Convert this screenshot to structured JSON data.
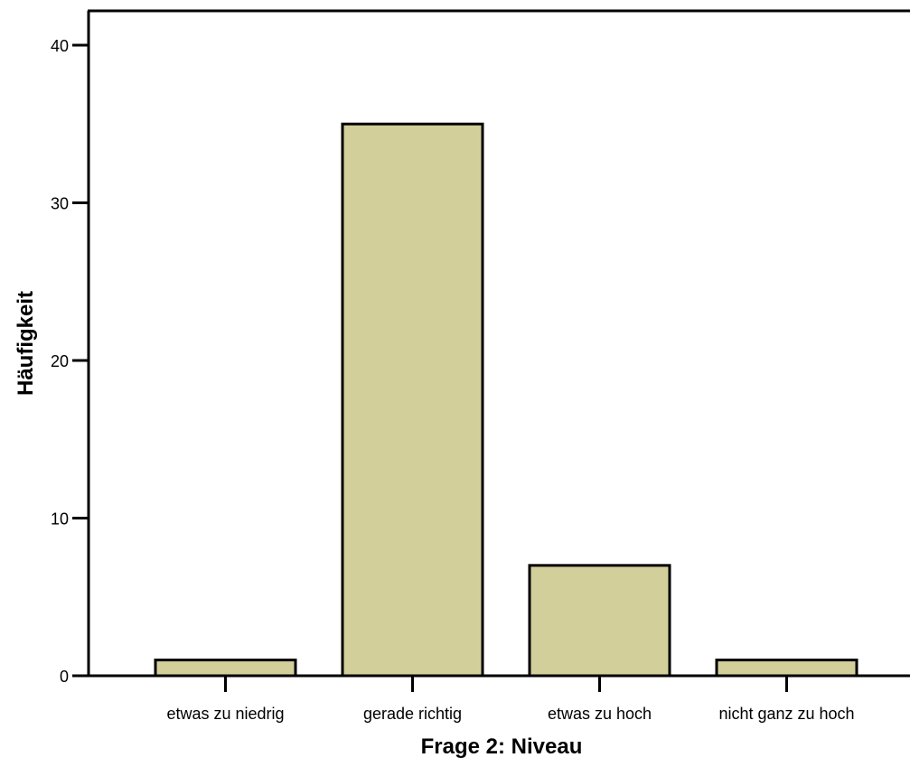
{
  "chart_data": {
    "type": "bar",
    "title": "",
    "xlabel": "Frage 2: Niveau",
    "ylabel": "Häufigkeit",
    "categories": [
      "etwas zu niedrig",
      "gerade richtig",
      "etwas zu hoch",
      "nicht ganz zu hoch"
    ],
    "values": [
      1,
      35,
      7,
      1
    ],
    "ylim": [
      0,
      42
    ],
    "yticks": [
      0,
      10,
      20,
      30,
      40
    ],
    "grid": false,
    "legend": "none",
    "bar_color": "#d3cf9b",
    "bar_edge_color": "#000000"
  }
}
